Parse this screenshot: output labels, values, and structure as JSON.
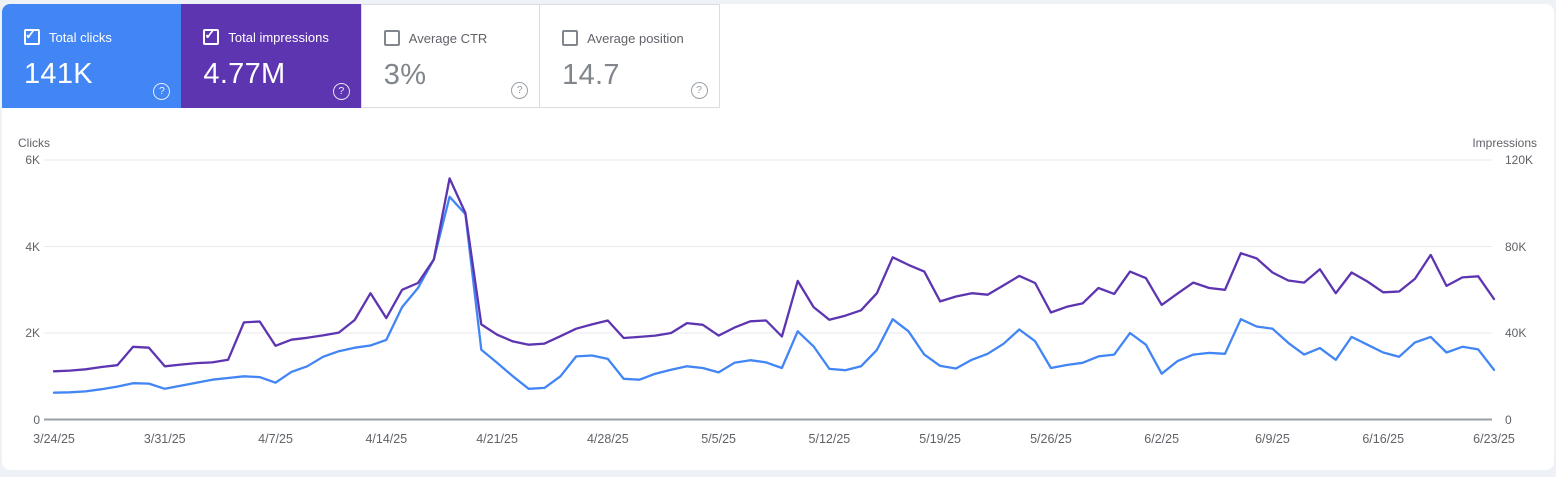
{
  "cards": [
    {
      "label": "Total clicks",
      "value": "141K",
      "checked": true,
      "bg": "#4285f4"
    },
    {
      "label": "Total impressions",
      "value": "4.77M",
      "checked": true,
      "bg": "#5e35b1"
    },
    {
      "label": "Average CTR",
      "value": "3%",
      "checked": false,
      "bg": "#ffffff"
    },
    {
      "label": "Average position",
      "value": "14.7",
      "checked": false,
      "bg": "#ffffff"
    }
  ],
  "icons": {
    "check": "✓",
    "help": "?"
  },
  "colors": {
    "clicks": "#4285f4",
    "impressions": "#5e35b1",
    "grid": "#e9eaed",
    "axis": "#9aa0a6",
    "card_border": "#dadce0",
    "text_secondary": "#5f6368",
    "value_gray": "#80868b",
    "page_bg": "#eef1f5"
  },
  "chart_data": {
    "type": "line",
    "grid": true,
    "left_axis": {
      "title": "Clicks",
      "ticks": [
        "0",
        "2K",
        "4K",
        "6K"
      ],
      "max": 6000
    },
    "right_axis": {
      "title": "Impressions",
      "ticks": [
        "0",
        "40K",
        "80K",
        "120K"
      ],
      "max": 120000
    },
    "x_labels": [
      "3/24/25",
      "3/31/25",
      "4/7/25",
      "4/14/25",
      "4/21/25",
      "4/28/25",
      "5/5/25",
      "5/12/25",
      "5/19/25",
      "5/26/25",
      "6/2/25",
      "6/9/25",
      "6/16/25",
      "6/23/25"
    ],
    "dates": [
      "3/24/25",
      "3/25/25",
      "3/26/25",
      "3/27/25",
      "3/28/25",
      "3/29/25",
      "3/30/25",
      "3/31/25",
      "4/1/25",
      "4/2/25",
      "4/3/25",
      "4/4/25",
      "4/5/25",
      "4/6/25",
      "4/7/25",
      "4/8/25",
      "4/9/25",
      "4/10/25",
      "4/11/25",
      "4/12/25",
      "4/13/25",
      "4/14/25",
      "4/15/25",
      "4/16/25",
      "4/17/25",
      "4/18/25",
      "4/19/25",
      "4/20/25",
      "4/21/25",
      "4/22/25",
      "4/23/25",
      "4/24/25",
      "4/25/25",
      "4/26/25",
      "4/27/25",
      "4/28/25",
      "4/29/25",
      "4/30/25",
      "5/1/25",
      "5/2/25",
      "5/3/25",
      "5/4/25",
      "5/5/25",
      "5/6/25",
      "5/7/25",
      "5/8/25",
      "5/9/25",
      "5/10/25",
      "5/11/25",
      "5/12/25",
      "5/13/25",
      "5/14/25",
      "5/15/25",
      "5/16/25",
      "5/17/25",
      "5/18/25",
      "5/19/25",
      "5/20/25",
      "5/21/25",
      "5/22/25",
      "5/23/25",
      "5/24/25",
      "5/25/25",
      "5/26/25",
      "5/27/25",
      "5/28/25",
      "5/29/25",
      "5/30/25",
      "5/31/25",
      "6/1/25",
      "6/2/25",
      "6/3/25",
      "6/4/25",
      "6/5/25",
      "6/6/25",
      "6/7/25",
      "6/8/25",
      "6/9/25",
      "6/10/25",
      "6/11/25",
      "6/12/25",
      "6/13/25",
      "6/14/25",
      "6/15/25",
      "6/16/25",
      "6/17/25",
      "6/18/25",
      "6/19/25",
      "6/20/25",
      "6/21/25",
      "6/22/25",
      "6/23/25"
    ],
    "series": [
      {
        "name": "Clicks",
        "axis": "left",
        "color": "#4285f4",
        "values": [
          620,
          630,
          650,
          700,
          760,
          840,
          830,
          710,
          780,
          850,
          920,
          960,
          1000,
          980,
          850,
          1100,
          1230,
          1450,
          1580,
          1660,
          1710,
          1840,
          2600,
          3040,
          3700,
          5150,
          4750,
          1615,
          1310,
          1000,
          710,
          730,
          1000,
          1460,
          1480,
          1400,
          940,
          920,
          1060,
          1150,
          1230,
          1190,
          1090,
          1310,
          1370,
          1320,
          1190,
          2040,
          1690,
          1170,
          1140,
          1230,
          1610,
          2320,
          2040,
          1500,
          1240,
          1180,
          1380,
          1520,
          1750,
          2080,
          1810,
          1190,
          1260,
          1310,
          1460,
          1500,
          2000,
          1730,
          1060,
          1350,
          1500,
          1540,
          1520,
          2320,
          2150,
          2100,
          1770,
          1500,
          1650,
          1380,
          1910,
          1730,
          1550,
          1450,
          1780,
          1910,
          1550,
          1680,
          1620,
          1150
        ]
      },
      {
        "name": "Impressions",
        "axis": "right",
        "color": "#5e35b1",
        "values": [
          22300,
          22600,
          23200,
          24300,
          25100,
          33600,
          33200,
          24600,
          25400,
          26100,
          26400,
          27600,
          44900,
          45300,
          34100,
          36900,
          37800,
          38900,
          40200,
          46000,
          58400,
          46900,
          60000,
          63100,
          74000,
          111500,
          95500,
          44000,
          39200,
          36100,
          34600,
          35100,
          38500,
          42000,
          44000,
          45800,
          37700,
          38200,
          38800,
          40000,
          44600,
          43800,
          38800,
          42500,
          45400,
          45800,
          38400,
          64100,
          52000,
          46100,
          48000,
          50500,
          58400,
          75000,
          71500,
          68400,
          54600,
          56900,
          58400,
          57700,
          62000,
          66400,
          63100,
          49500,
          52100,
          53700,
          60800,
          58100,
          68400,
          65400,
          53000,
          58200,
          63300,
          60800,
          60000,
          76900,
          74500,
          68000,
          64300,
          63300,
          69500,
          58400,
          68000,
          63800,
          58800,
          59200,
          65000,
          76100,
          61800,
          65700,
          66200,
          55700
        ]
      }
    ]
  }
}
